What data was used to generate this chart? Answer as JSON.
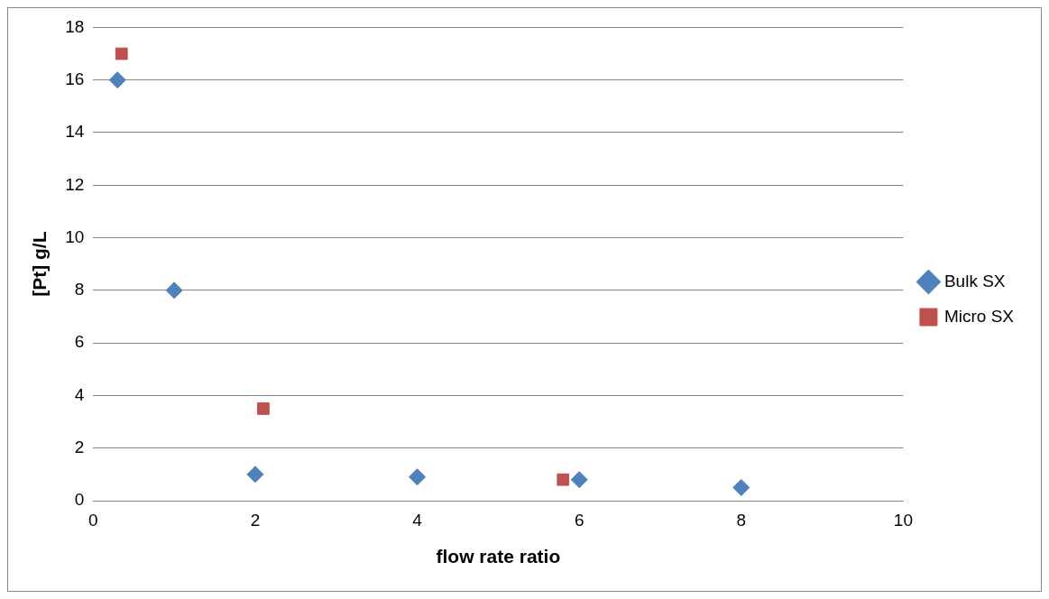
{
  "chart_data": {
    "type": "scatter",
    "xlabel": "flow rate ratio",
    "ylabel": "[Pt] g/L",
    "xlim": [
      0,
      10
    ],
    "xticks": [
      0,
      2,
      4,
      6,
      8,
      10
    ],
    "ylim": [
      0,
      18
    ],
    "yticks": [
      0,
      2,
      4,
      6,
      8,
      10,
      12,
      14,
      16,
      18
    ],
    "grid": "y",
    "legend": "right",
    "series": [
      {
        "name": "Bulk SX",
        "color": "#4f81bd",
        "marker": "diamond",
        "x": [
          0.3,
          1,
          2,
          4,
          6,
          8
        ],
        "values": [
          16,
          8,
          1,
          0.9,
          0.8,
          0.5
        ]
      },
      {
        "name": "Micro SX",
        "color": "#c0504d",
        "marker": "square",
        "x": [
          0.35,
          2.1,
          5.8
        ],
        "values": [
          17,
          3.5,
          0.8
        ]
      }
    ]
  }
}
